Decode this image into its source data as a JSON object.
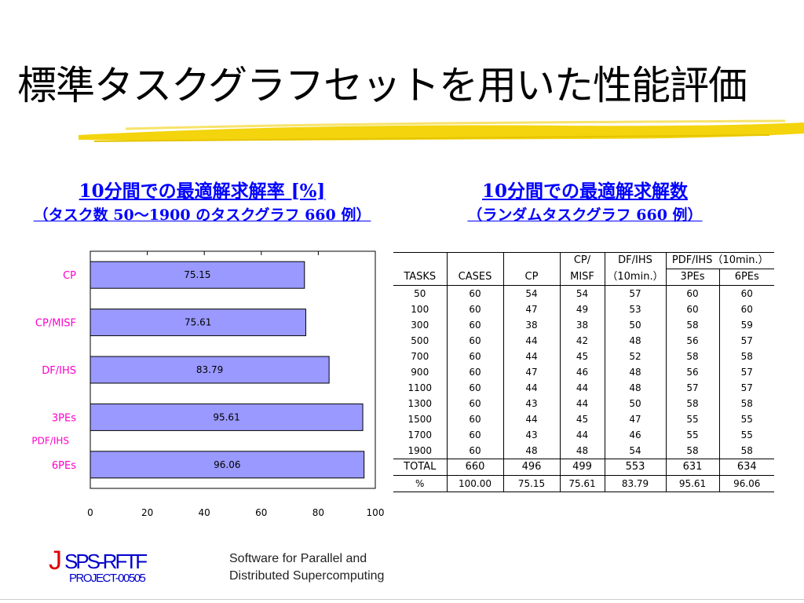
{
  "title": "標準タスクグラフセットを用いた性能評価",
  "left_heading": {
    "line1": "10分間での最適解求解率 [%]",
    "line2": "（タスク数 50～1900 のタスクグラフ 660 例）"
  },
  "right_heading": {
    "line1": "10分間での最適解求解数",
    "line2": "（ランダムタスクグラフ 660 例）"
  },
  "colors": {
    "bar_fill": "#9999ff",
    "label_magenta": "#ff00cc",
    "heading_blue": "#0000ff",
    "brush_yellow": "#f2d200"
  },
  "chart_data": {
    "type": "bar",
    "orientation": "horizontal",
    "categories": [
      "CP",
      "CP/MISF",
      "DF/IHS",
      "3PEs",
      "6PEs"
    ],
    "group_label": "PDF/IHS",
    "values": [
      75.15,
      75.61,
      83.79,
      95.61,
      96.06
    ],
    "data_labels": [
      "75.15",
      "75.61",
      "83.79",
      "95.61",
      "96.06"
    ],
    "xlim": [
      0,
      100
    ],
    "xticks": [
      "0",
      "20",
      "40",
      "60",
      "80",
      "100"
    ],
    "grid": false
  },
  "table": {
    "header_row1": [
      "",
      "",
      "",
      "CP/",
      "DF/IHS",
      "PDF/IHS（10min.）"
    ],
    "header_row2": [
      "TASKS",
      "CASES",
      "CP",
      "MISF",
      "（10min.）",
      "3PEs",
      "6PEs"
    ],
    "rows": [
      [
        "50",
        "60",
        "54",
        "54",
        "57",
        "60",
        "60"
      ],
      [
        "100",
        "60",
        "47",
        "49",
        "53",
        "60",
        "60"
      ],
      [
        "300",
        "60",
        "38",
        "38",
        "50",
        "58",
        "59"
      ],
      [
        "500",
        "60",
        "44",
        "42",
        "48",
        "56",
        "57"
      ],
      [
        "700",
        "60",
        "44",
        "45",
        "52",
        "58",
        "58"
      ],
      [
        "900",
        "60",
        "47",
        "46",
        "48",
        "56",
        "57"
      ],
      [
        "1100",
        "60",
        "44",
        "44",
        "48",
        "57",
        "57"
      ],
      [
        "1300",
        "60",
        "43",
        "44",
        "50",
        "58",
        "58"
      ],
      [
        "1500",
        "60",
        "44",
        "45",
        "47",
        "55",
        "55"
      ],
      [
        "1700",
        "60",
        "43",
        "44",
        "46",
        "55",
        "55"
      ],
      [
        "1900",
        "60",
        "48",
        "48",
        "54",
        "58",
        "58"
      ]
    ],
    "total_row": [
      "TOTAL",
      "660",
      "496",
      "499",
      "553",
      "631",
      "634"
    ],
    "pct_row": [
      "%",
      "100.00",
      "75.15",
      "75.61",
      "83.79",
      "95.61",
      "96.06"
    ]
  },
  "logo": {
    "letter": "J",
    "name": "SPS-RFTF",
    "project": "PROJECT-00505"
  },
  "footer": {
    "line1": "Software for Parallel and",
    "line2": "Distributed Supercomputing"
  }
}
